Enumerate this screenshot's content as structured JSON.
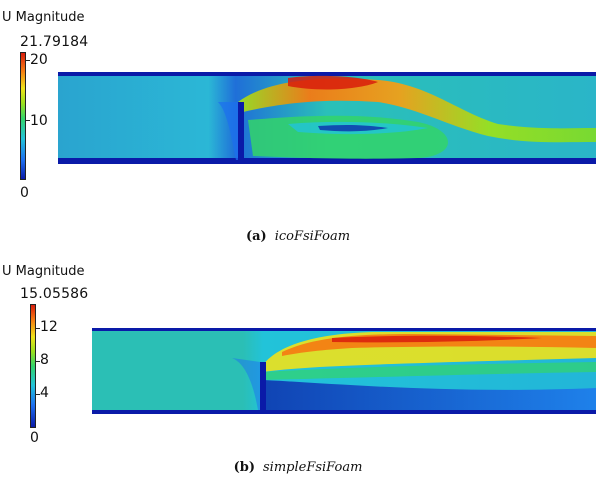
{
  "colors": {
    "colormap": [
      "#0a1aa8",
      "#1d6ff0",
      "#22c3d9",
      "#33d46a",
      "#9be01e",
      "#f0e21a",
      "#f57a12",
      "#d81c0c"
    ]
  },
  "panels": [
    {
      "colorbar": {
        "title": "U Magnitude",
        "max_label": "21.79184",
        "ticks": [
          "20",
          "10",
          "0"
        ]
      },
      "caption": {
        "label": "(a)",
        "name": "icoFsiFoam"
      }
    },
    {
      "colorbar": {
        "title": "U Magnitude",
        "max_label": "15.05586",
        "ticks": [
          "12",
          "8",
          "4",
          "0"
        ]
      },
      "caption": {
        "label": "(b)",
        "name": "simpleFsiFoam"
      }
    }
  ]
}
